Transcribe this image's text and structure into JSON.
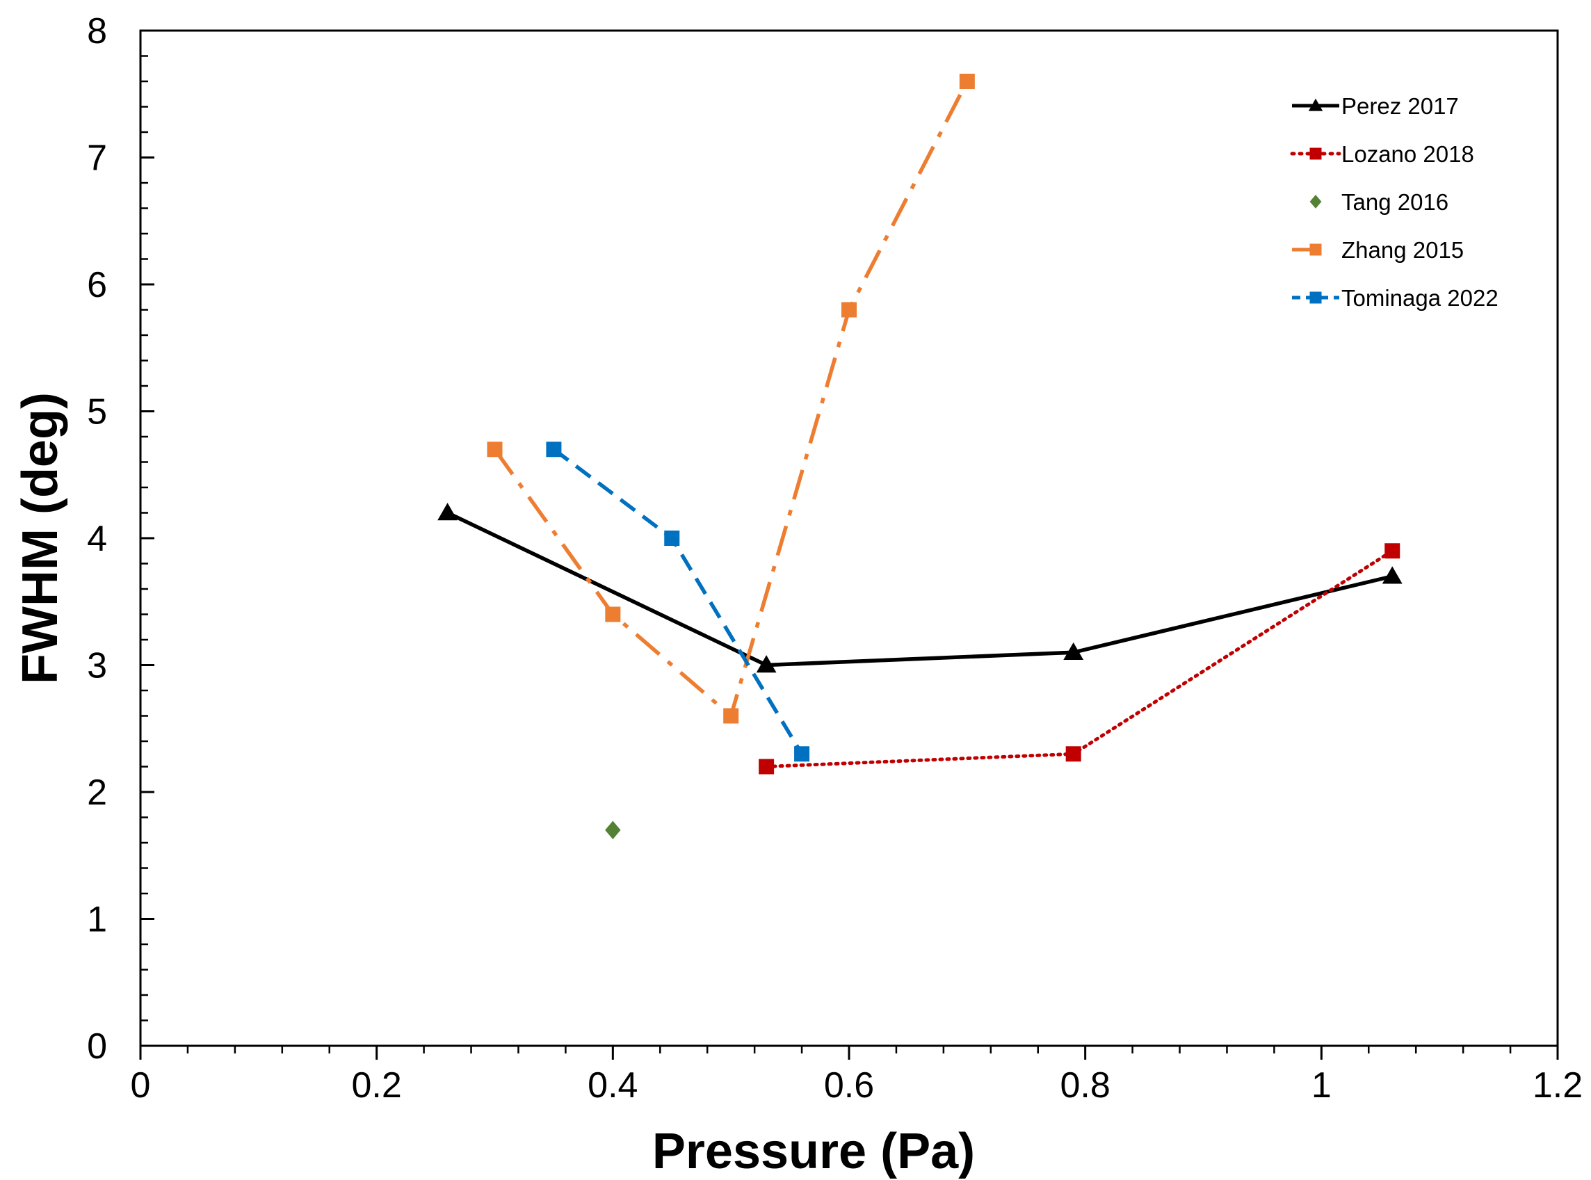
{
  "chart_data": {
    "type": "line",
    "title": "",
    "xlabel": "Pressure (Pa)",
    "ylabel": "FWHM (deg)",
    "xlim": [
      0,
      1.2
    ],
    "ylim": [
      0,
      8
    ],
    "xticks": [
      0,
      0.2,
      0.4,
      0.6,
      0.8,
      1,
      1.2
    ],
    "xtick_labels": [
      "0",
      "0.2",
      "0.4",
      "0.6",
      "0.8",
      "1",
      "1.2"
    ],
    "yticks": [
      0,
      1,
      2,
      3,
      4,
      5,
      6,
      7,
      8
    ],
    "ytick_labels": [
      "0",
      "1",
      "2",
      "3",
      "4",
      "5",
      "6",
      "7",
      "8"
    ],
    "x_minor_step": 0.04,
    "y_minor_step": 0.2,
    "grid": false,
    "legend_position": "top-right",
    "series": [
      {
        "name": "Perez 2017",
        "color": "#000000",
        "marker": "triangle",
        "line": "solid",
        "x": [
          0.26,
          0.53,
          0.79,
          1.06
        ],
        "y": [
          4.2,
          3.0,
          3.1,
          3.7
        ]
      },
      {
        "name": "Lozano 2018",
        "color": "#C00000",
        "marker": "square",
        "line": "dotted",
        "x": [
          0.53,
          0.79,
          1.06
        ],
        "y": [
          2.2,
          2.3,
          3.9
        ]
      },
      {
        "name": "Tang 2016",
        "color": "#548235",
        "marker": "diamond",
        "line": "none",
        "x": [
          0.4
        ],
        "y": [
          1.7
        ]
      },
      {
        "name": "Zhang 2015",
        "color": "#ED7D31",
        "marker": "square",
        "line": "dashdot",
        "x": [
          0.3,
          0.4,
          0.5,
          0.6,
          0.7
        ],
        "y": [
          4.7,
          3.4,
          2.6,
          5.8,
          7.6
        ]
      },
      {
        "name": "Tominaga 2022",
        "color": "#0070C0",
        "marker": "square",
        "line": "dashed",
        "x": [
          0.35,
          0.45,
          0.56
        ],
        "y": [
          4.7,
          4.0,
          2.3
        ]
      }
    ]
  }
}
